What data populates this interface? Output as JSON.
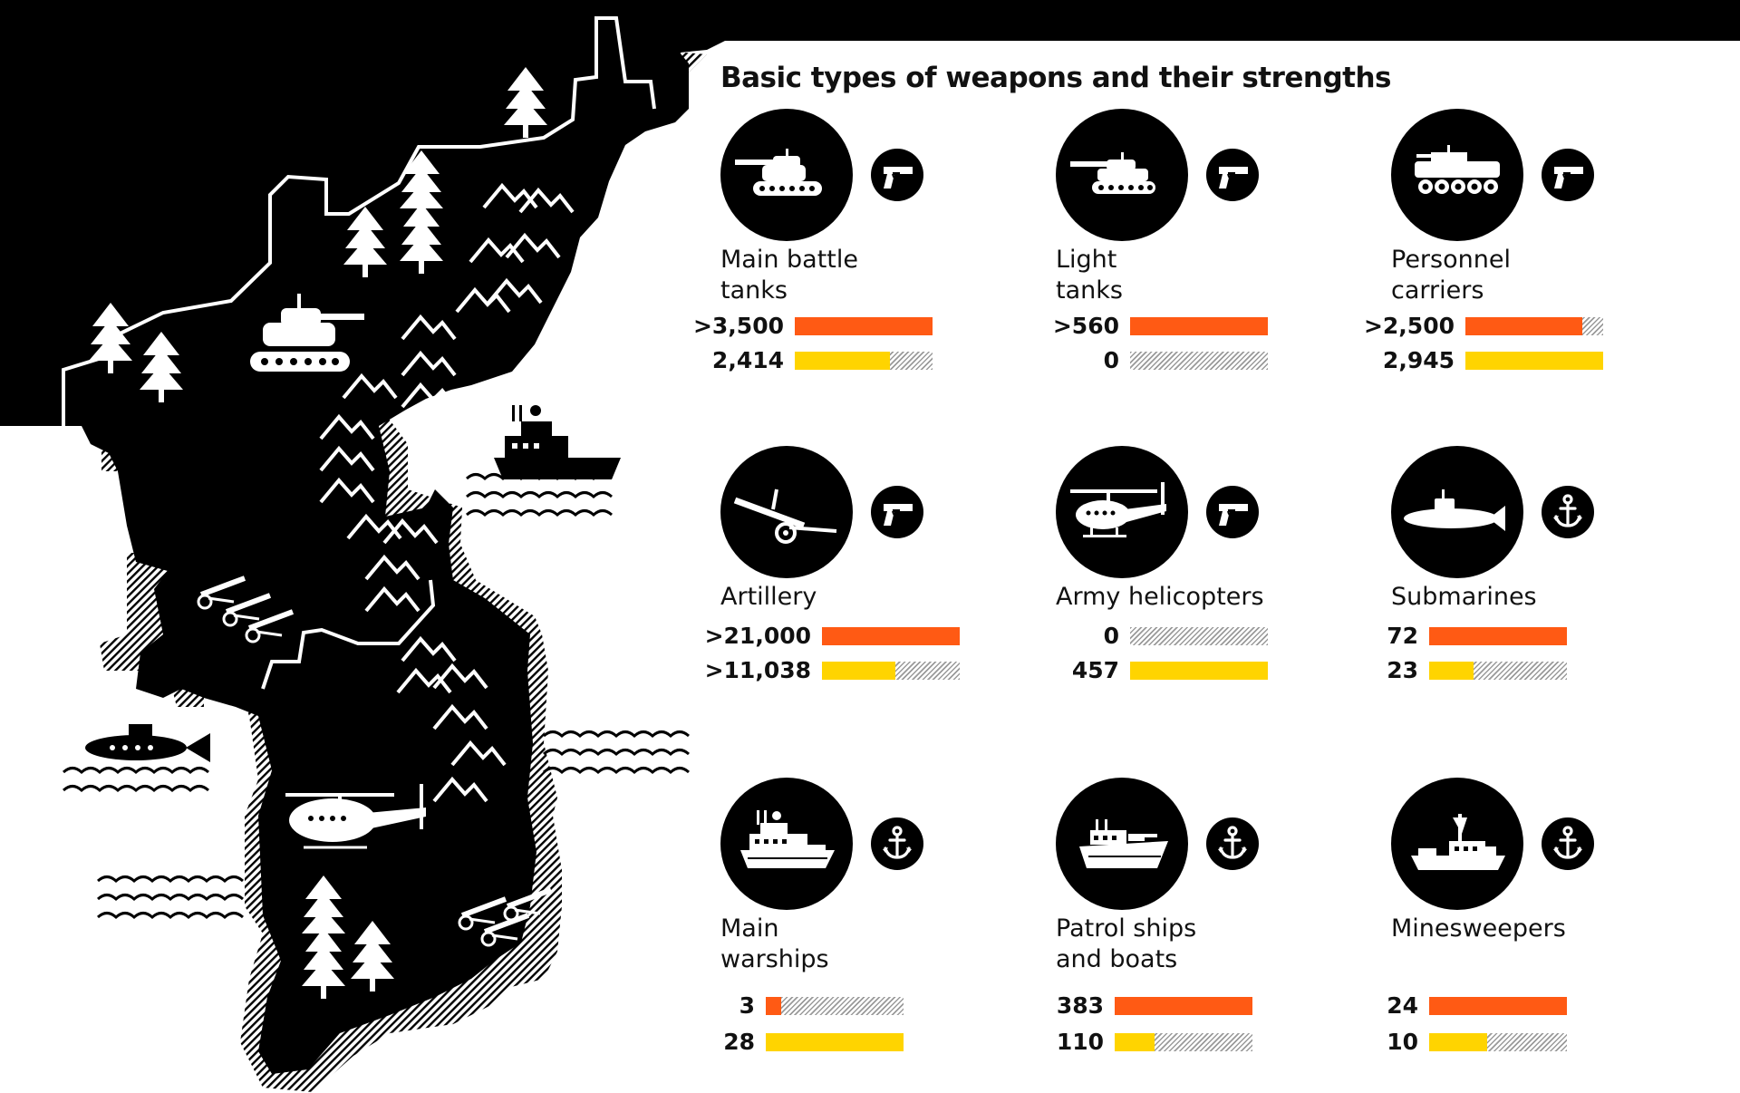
{
  "title": "Basic types of weapons and their strengths",
  "icons": {
    "army_branch": "pistol-icon",
    "navy_branch": "anchor-icon"
  },
  "colors": {
    "bar_top": "#ff5a14",
    "bar_bottom": "#ffd400",
    "hatch": "#9a9a9a",
    "map": "#000000",
    "background": "#ffffff"
  },
  "chart_data": {
    "type": "bar",
    "title": "Basic types of weapons and their strengths",
    "series": [
      {
        "name": "",
        "color": "#ff5a14"
      },
      {
        "name": "",
        "color": "#ffd400"
      }
    ],
    "panels": [
      {
        "category": "Main battle tanks",
        "label": "Main battle\ntanks",
        "icon": "tank-icon",
        "branch_icon": "pistol-icon",
        "values": [
          3500,
          2414
        ],
        "value_labels": [
          ">3,500",
          "2,414"
        ],
        "ratios": [
          1.0,
          0.69
        ]
      },
      {
        "category": "Light tanks",
        "label": "Light\ntanks",
        "icon": "light-tank-icon",
        "branch_icon": "pistol-icon",
        "values": [
          560,
          0
        ],
        "value_labels": [
          ">560",
          "0"
        ],
        "ratios": [
          1.0,
          0.0
        ]
      },
      {
        "category": "Personnel carriers",
        "label": "Personnel\ncarriers",
        "icon": "personnel-carrier-icon",
        "branch_icon": "pistol-icon",
        "values": [
          2500,
          2945
        ],
        "value_labels": [
          ">2,500",
          "2,945"
        ],
        "ratios": [
          0.85,
          1.0
        ]
      },
      {
        "category": "Artillery",
        "label": "Artillery",
        "icon": "artillery-icon",
        "branch_icon": "pistol-icon",
        "values": [
          21000,
          11038
        ],
        "value_labels": [
          ">21,000",
          ">11,038"
        ],
        "ratios": [
          1.0,
          0.53
        ]
      },
      {
        "category": "Army helicopters",
        "label": "Army helicopters",
        "icon": "helicopter-icon",
        "branch_icon": "pistol-icon",
        "values": [
          0,
          457
        ],
        "value_labels": [
          "0",
          "457"
        ],
        "ratios": [
          0.0,
          1.0
        ]
      },
      {
        "category": "Submarines",
        "label": "Submarines",
        "icon": "submarine-icon",
        "branch_icon": "anchor-icon",
        "values": [
          72,
          23
        ],
        "value_labels": [
          "72",
          "23"
        ],
        "ratios": [
          1.0,
          0.32
        ]
      },
      {
        "category": "Main warships",
        "label": "Main\nwarships",
        "icon": "warship-icon",
        "branch_icon": "anchor-icon",
        "values": [
          3,
          28
        ],
        "value_labels": [
          "3",
          "28"
        ],
        "ratios": [
          0.11,
          1.0
        ]
      },
      {
        "category": "Patrol ships and boats",
        "label": "Patrol ships\nand boats",
        "icon": "patrol-ship-icon",
        "branch_icon": "anchor-icon",
        "values": [
          383,
          110
        ],
        "value_labels": [
          "383",
          "110"
        ],
        "ratios": [
          1.0,
          0.29
        ]
      },
      {
        "category": "Minesweepers",
        "label": "Minesweepers",
        "icon": "minesweeper-icon",
        "branch_icon": "anchor-icon",
        "values": [
          24,
          10
        ],
        "value_labels": [
          "24",
          "10"
        ],
        "ratios": [
          1.0,
          0.42
        ]
      }
    ]
  }
}
